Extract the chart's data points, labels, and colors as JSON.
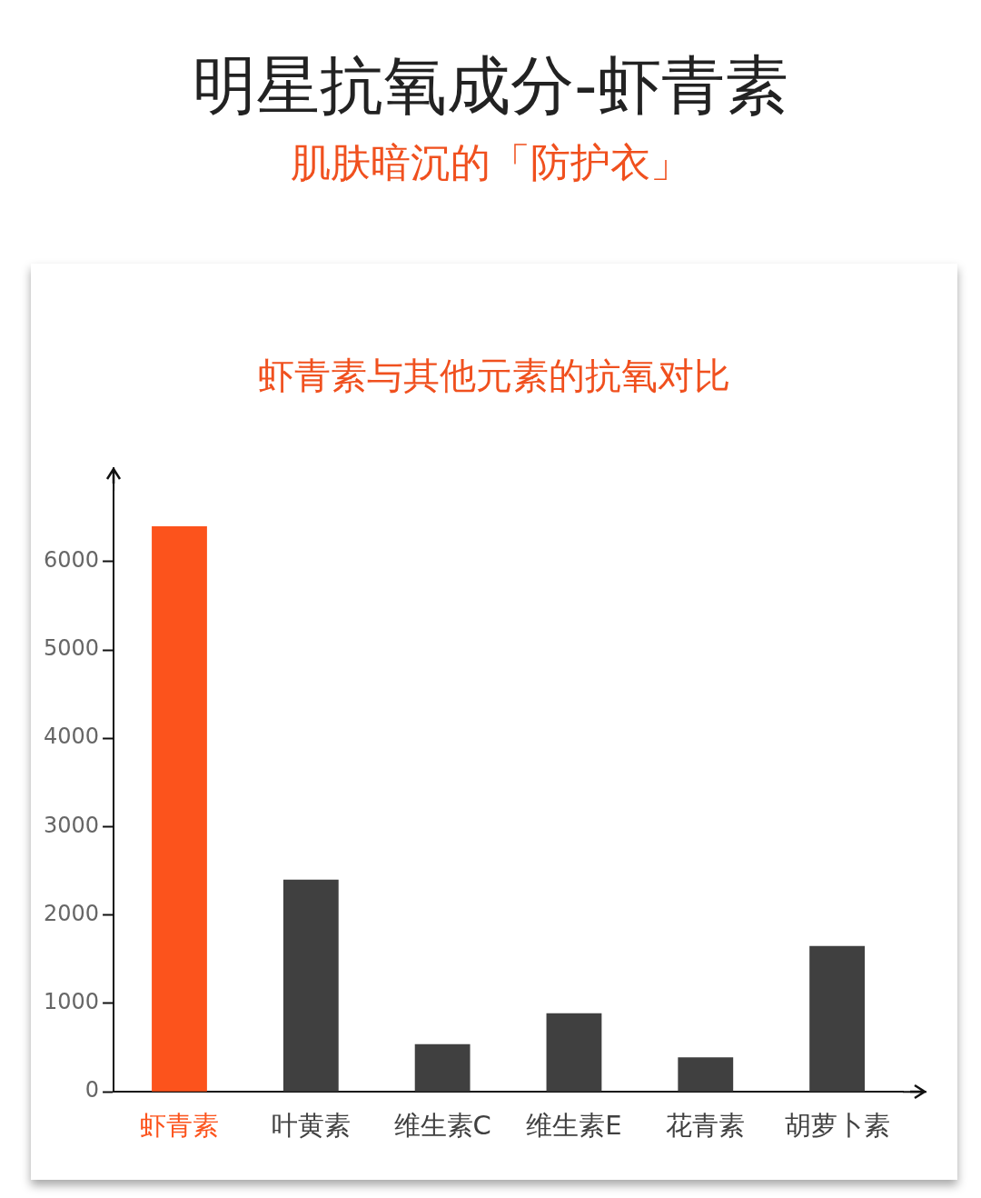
{
  "chart_data": {
    "type": "bar",
    "title": "明星抗氧成分-虾青素",
    "subtitle": "肌肤暗沉的「防护衣」",
    "annotations": [
      "虾青素与其他元素的抗氧对比"
    ],
    "categories": [
      "虾青素",
      "叶黄素",
      "维生素C",
      "维生素E",
      "花青素",
      "胡萝卜素"
    ],
    "values": [
      6400,
      2400,
      540,
      890,
      390,
      1650
    ],
    "colors": [
      "#fc531c",
      "#404040",
      "#404040",
      "#404040",
      "#404040",
      "#404040"
    ],
    "ylim": [
      0,
      6800
    ],
    "yticks": [
      0,
      1000,
      2000,
      3000,
      4000,
      5000,
      6000
    ],
    "legend": false,
    "grid": false
  }
}
